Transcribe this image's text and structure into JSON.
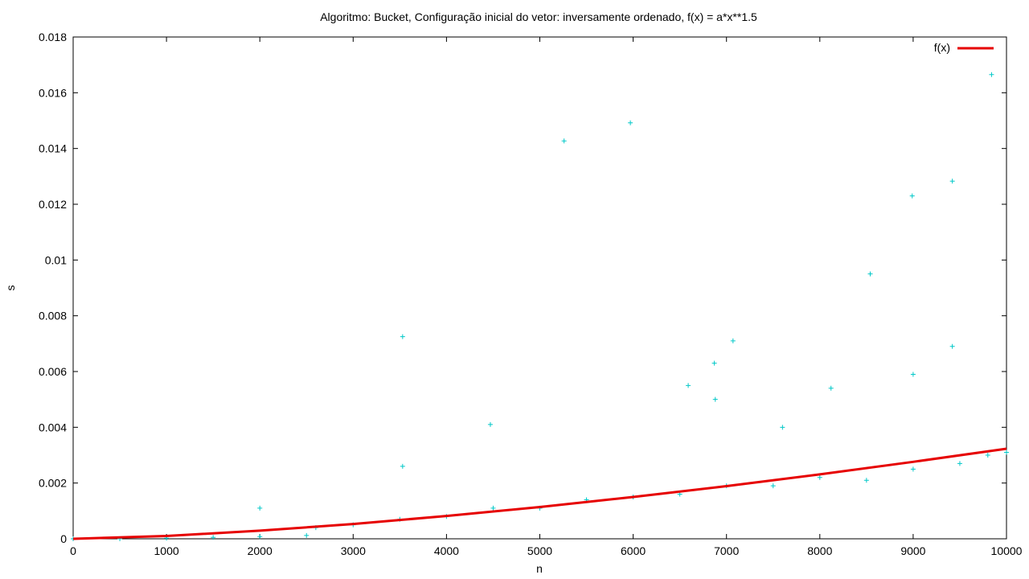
{
  "chart_data": {
    "type": "scatter",
    "title": "Algoritmo: Bucket, Configuração inicial do vetor: inversamente ordenado, f(x) = a*x**1.5",
    "xlabel": "n",
    "ylabel": "s",
    "xlim": [
      0,
      10000
    ],
    "ylim": [
      0,
      0.018
    ],
    "x_ticks": [
      0,
      1000,
      2000,
      3000,
      4000,
      5000,
      6000,
      7000,
      8000,
      9000,
      10000
    ],
    "x_tick_labels": [
      "0",
      "1000",
      "2000",
      "3000",
      "4000",
      "5000",
      "6000",
      "7000",
      "8000",
      "9000",
      "10000"
    ],
    "y_ticks": [
      0,
      0.002,
      0.004,
      0.006,
      0.008,
      0.01,
      0.012,
      0.014,
      0.016,
      0.018
    ],
    "y_tick_labels": [
      "0",
      "0.002",
      "0.004",
      "0.006",
      "0.008",
      "0.01",
      "0.012",
      "0.014",
      "0.016",
      "0.018"
    ],
    "grid": false,
    "legend": {
      "position": "top-right",
      "entries": [
        {
          "label": "f(x)",
          "color": "#e60000"
        }
      ]
    },
    "series": [
      {
        "name": "f(x)",
        "kind": "line",
        "color": "#e60000",
        "x": [
          0,
          1000,
          2000,
          3000,
          4000,
          5000,
          6000,
          7000,
          8000,
          9000,
          10000
        ],
        "y": [
          0,
          0.0001,
          0.00029,
          0.00053,
          0.00082,
          0.00114,
          0.0015,
          0.00189,
          0.00231,
          0.00276,
          0.00323
        ]
      },
      {
        "kind": "points",
        "color": "#00c8c8",
        "marker": "+",
        "x": [
          0,
          500,
          1000,
          1500,
          2000,
          2500,
          2600,
          3000,
          3500,
          4000,
          4500,
          5000,
          5500,
          6000,
          6500,
          7000,
          7500,
          8000,
          8500,
          9000,
          9500,
          9800,
          10000,
          2000,
          3530,
          3530,
          4470,
          5260,
          5970,
          6590,
          6870,
          6880,
          7070,
          7600,
          8120,
          8540,
          8990,
          9000,
          9420,
          9420,
          9840
        ],
        "y": [
          0,
          0,
          2e-05,
          5e-05,
          8e-05,
          0.00012,
          0.0004,
          0.0005,
          0.0007,
          0.0008,
          0.0011,
          0.0011,
          0.0014,
          0.0015,
          0.0016,
          0.0019,
          0.0019,
          0.0022,
          0.0021,
          0.0025,
          0.0027,
          0.003,
          0.0031,
          0.0011,
          0.00725,
          0.0026,
          0.0041,
          0.01427,
          0.01492,
          0.0055,
          0.0063,
          0.005,
          0.0071,
          0.004,
          0.0054,
          0.0095,
          0.0123,
          0.0059,
          0.01283,
          0.0069,
          0.01665
        ]
      }
    ]
  }
}
